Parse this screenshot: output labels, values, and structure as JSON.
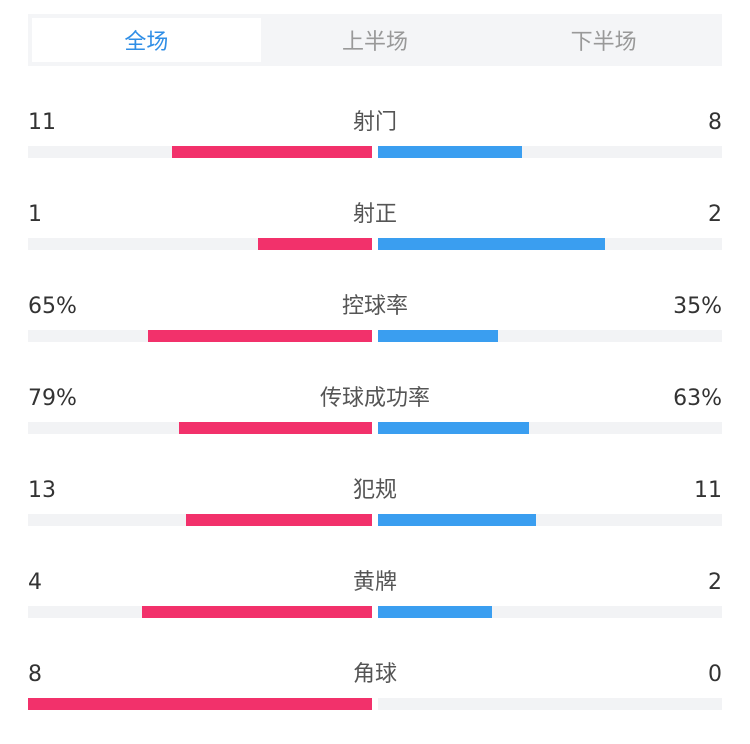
{
  "tabs": [
    {
      "label": "全场",
      "active": true
    },
    {
      "label": "上半场",
      "active": false
    },
    {
      "label": "下半场",
      "active": false
    }
  ],
  "colors": {
    "home": "#f2316b",
    "away": "#3a9ef0",
    "active_tab": "#2f8ee6"
  },
  "stats": [
    {
      "label": "射门",
      "home": "11",
      "away": "8",
      "home_fill": 0.58,
      "away_fill": 0.42
    },
    {
      "label": "射正",
      "home": "1",
      "away": "2",
      "home_fill": 0.33,
      "away_fill": 0.66
    },
    {
      "label": "控球率",
      "home": "65%",
      "away": "35%",
      "home_fill": 0.65,
      "away_fill": 0.35
    },
    {
      "label": "传球成功率",
      "home": "79%",
      "away": "63%",
      "home_fill": 0.56,
      "away_fill": 0.44
    },
    {
      "label": "犯规",
      "home": "13",
      "away": "11",
      "home_fill": 0.54,
      "away_fill": 0.46
    },
    {
      "label": "黄牌",
      "home": "4",
      "away": "2",
      "home_fill": 0.67,
      "away_fill": 0.33
    },
    {
      "label": "角球",
      "home": "8",
      "away": "0",
      "home_fill": 1.0,
      "away_fill": 0.0
    }
  ]
}
